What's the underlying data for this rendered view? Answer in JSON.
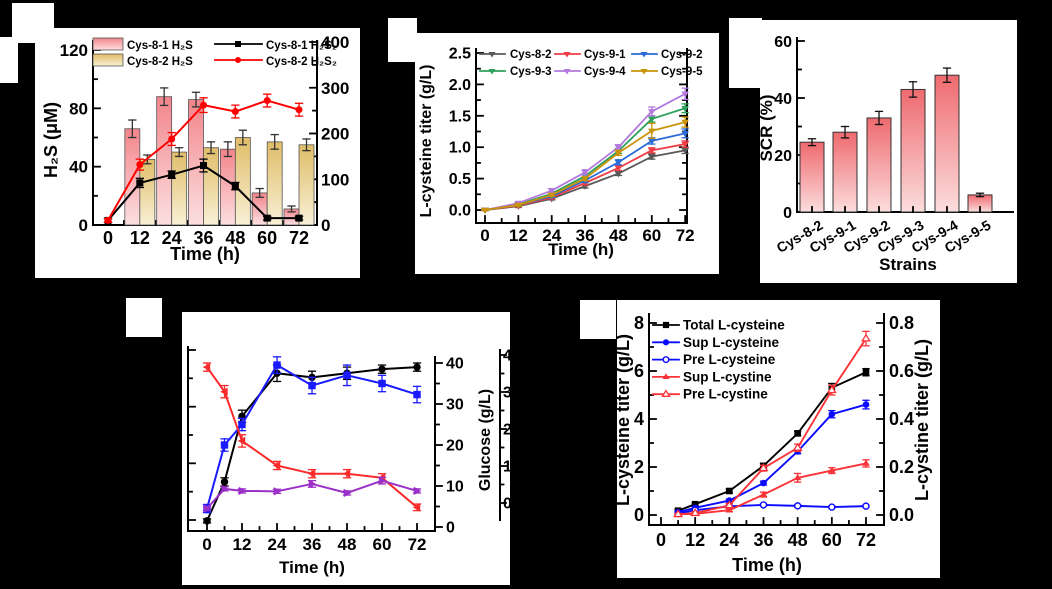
{
  "figure": {
    "background": "#000000",
    "panel_labels": {
      "a": "",
      "b": "",
      "c": "",
      "d": "",
      "e": ""
    }
  },
  "chart_data": [
    {
      "panel": "top-left",
      "type": "bar+line",
      "xlabel": "Time (h)",
      "ylabel_left": "H₂S (μM)",
      "x_tick_labels": [
        "0",
        "12",
        "24",
        "36",
        "48",
        "60",
        "72"
      ],
      "ylim_left": [
        0,
        120
      ],
      "yticks_left": [
        "0",
        "40",
        "80",
        "120"
      ],
      "ylim_right": [
        0,
        400
      ],
      "yticks_right": [
        "0",
        "100",
        "200",
        "300",
        "400"
      ],
      "bar_series": [
        {
          "name": "Cys-8-1 H₂S",
          "color_top": "#f2858b",
          "color_bottom": "#fcdfe0",
          "x": [
            12,
            24,
            36,
            48,
            60,
            72
          ],
          "values": [
            66,
            88,
            86,
            52,
            22,
            11
          ],
          "err": [
            6,
            6,
            5,
            5,
            3,
            2
          ]
        },
        {
          "name": "Cys-8-2 H₂S",
          "color_top": "#e0bd68",
          "color_bottom": "#f8f0d6",
          "x": [
            12,
            24,
            36,
            48,
            60,
            72
          ],
          "values": [
            45,
            50,
            53,
            60,
            57,
            55
          ],
          "err": [
            3,
            3,
            4,
            5,
            5,
            4
          ]
        }
      ],
      "line_series": [
        {
          "name": "Cys-8-1 H₂S₂",
          "color": "#000000",
          "marker": "square",
          "axis": "right",
          "x": [
            0,
            12,
            24,
            36,
            48,
            60,
            72
          ],
          "values": [
            10,
            92,
            110,
            130,
            85,
            15,
            15
          ],
          "err": [
            4,
            10,
            8,
            14,
            8,
            4,
            4
          ]
        },
        {
          "name": "Cys-8-2 H₂S₂",
          "color": "#fe0000",
          "marker": "circle",
          "axis": "right",
          "x": [
            0,
            12,
            24,
            36,
            48,
            60,
            72
          ],
          "values": [
            10,
            132,
            188,
            262,
            248,
            272,
            252
          ],
          "err": [
            4,
            12,
            14,
            16,
            14,
            14,
            14
          ]
        }
      ]
    },
    {
      "panel": "top-middle",
      "type": "line",
      "xlabel": "Time (h)",
      "ylabel": "L-cysteine titer (g/L)",
      "x": [
        0,
        12,
        24,
        36,
        48,
        60,
        72
      ],
      "x_tick_labels": [
        "0",
        "12",
        "24",
        "36",
        "48",
        "60",
        "72"
      ],
      "ylim": [
        0,
        2.5
      ],
      "yticks": [
        "0.0",
        "0.5",
        "1.0",
        "1.5",
        "2.0",
        "2.5"
      ],
      "series": [
        {
          "name": "Cys-8-2",
          "color": "#595959",
          "marker": "triangle-down",
          "values": [
            0,
            0.06,
            0.18,
            0.38,
            0.58,
            0.85,
            0.95
          ],
          "err": [
            0.01,
            0.02,
            0.02,
            0.03,
            0.03,
            0.04,
            0.05
          ]
        },
        {
          "name": "Cys-9-1",
          "color": "#ed3e45",
          "marker": "triangle-down",
          "values": [
            0,
            0.07,
            0.2,
            0.43,
            0.67,
            0.95,
            1.05
          ],
          "err": [
            0.01,
            0.02,
            0.02,
            0.03,
            0.04,
            0.04,
            0.05
          ]
        },
        {
          "name": "Cys-9-2",
          "color": "#2a6bd8",
          "marker": "triangle-down",
          "values": [
            0,
            0.08,
            0.22,
            0.47,
            0.76,
            1.1,
            1.22
          ],
          "err": [
            0.01,
            0.02,
            0.02,
            0.03,
            0.04,
            0.05,
            0.07
          ]
        },
        {
          "name": "Cys-9-3",
          "color": "#2ca05a",
          "marker": "triangle-down",
          "values": [
            0,
            0.09,
            0.26,
            0.54,
            0.94,
            1.45,
            1.62
          ],
          "err": [
            0.01,
            0.02,
            0.03,
            0.03,
            0.04,
            0.05,
            0.07
          ]
        },
        {
          "name": "Cys-9-4",
          "color": "#b279de",
          "marker": "triangle-down",
          "values": [
            0,
            0.11,
            0.31,
            0.6,
            1.0,
            1.57,
            1.85
          ],
          "err": [
            0.01,
            0.02,
            0.03,
            0.04,
            0.04,
            0.07,
            0.09
          ]
        },
        {
          "name": "Cys-9-5",
          "color": "#c9930a",
          "marker": "triangle-down",
          "values": [
            0,
            0.08,
            0.24,
            0.5,
            0.91,
            1.26,
            1.4
          ],
          "err": [
            0.01,
            0.02,
            0.02,
            0.03,
            0.04,
            0.12,
            0.08
          ]
        }
      ]
    },
    {
      "panel": "top-right",
      "type": "bar",
      "xlabel": "Strains",
      "ylabel": "SCR (%)",
      "categories": [
        "Cys-8-2",
        "Cys-9-1",
        "Cys-9-2",
        "Cys-9-3",
        "Cys-9-4",
        "Cys-9-5"
      ],
      "values": [
        24.5,
        28,
        33,
        43,
        48,
        6
      ],
      "err": [
        1.2,
        2,
        2.3,
        2.7,
        2.5,
        0.6
      ],
      "ylim": [
        0,
        60
      ],
      "yticks": [
        "0",
        "20",
        "40",
        "60"
      ],
      "bar_color_top": "#ee6a6f",
      "bar_color_bottom": "#fcdddd"
    },
    {
      "panel": "bottom-left",
      "type": "line",
      "xlabel": "Time (h)",
      "ylabel_right": "Glucose (g/L)",
      "x": [
        0,
        6,
        12,
        24,
        36,
        48,
        60,
        72
      ],
      "x_tick_labels": [
        "0",
        "12",
        "24",
        "36",
        "48",
        "60",
        "72"
      ],
      "ylim_right": [
        0,
        40
      ],
      "yticks_right": [
        "0",
        "10",
        "20",
        "30",
        "40"
      ],
      "left_axis_labels_visible": false,
      "right_axis2_partial_labels": [
        "4",
        "3",
        "2",
        "1",
        "0"
      ],
      "series": [
        {
          "name": "black-circle-series",
          "color": "#000000",
          "marker": "circle",
          "values": [
            1.5,
            11,
            27,
            37.5,
            36.5,
            37.5,
            38.5,
            39
          ],
          "err": [
            0.5,
            1,
            1.5,
            2,
            1.5,
            1.5,
            1,
            1
          ]
        },
        {
          "name": "blue-square-series",
          "color": "#1a1aff",
          "marker": "square",
          "values": [
            4.5,
            20,
            25,
            39.5,
            34.5,
            37,
            35,
            32.3
          ],
          "err": [
            1,
            1.5,
            1.5,
            2,
            2,
            2.5,
            2,
            2
          ]
        },
        {
          "name": "glucose-red-left-triangle-series",
          "color": "#fb2b2b",
          "marker": "triangle-left",
          "values": [
            39,
            33,
            21,
            15,
            13,
            13,
            12,
            4.8
          ],
          "err": [
            1,
            1.5,
            1.5,
            1,
            1,
            1,
            1,
            0.8
          ]
        },
        {
          "name": "purple-right-triangle-series",
          "color": "#9b30c8",
          "marker": "triangle-right",
          "values": [
            4.5,
            9.3,
            8.8,
            8.7,
            10.5,
            8.3,
            11.3,
            8.8
          ],
          "err": [
            0.5,
            0.5,
            0.5,
            0.5,
            0.8,
            0.5,
            0.8,
            0.5
          ]
        }
      ]
    },
    {
      "panel": "bottom-right",
      "type": "line",
      "xlabel": "Time (h)",
      "ylabel_left": "L-cysteine titer (g/L)",
      "ylabel_right": "L-cystine titer (g/L)",
      "x": [
        6,
        12,
        24,
        36,
        48,
        60,
        72
      ],
      "x_tick_labels": [
        "0",
        "12",
        "24",
        "36",
        "48",
        "60",
        "72"
      ],
      "ylim_left": [
        0,
        8
      ],
      "yticks_left": [
        "0",
        "2",
        "4",
        "6",
        "8"
      ],
      "ylim_right": [
        0,
        0.8
      ],
      "yticks_right": [
        "0.0",
        "0.2",
        "0.4",
        "0.6",
        "0.8"
      ],
      "series": [
        {
          "name": "Total L-cysteine",
          "color": "#000000",
          "marker": "square",
          "axis": "left",
          "values": [
            0.18,
            0.45,
            1.0,
            2.05,
            3.4,
            5.3,
            5.95
          ],
          "err": [
            0.05,
            0.06,
            0.08,
            0.1,
            0.1,
            0.18,
            0.15
          ]
        },
        {
          "name": "Sup L-cysteine",
          "color": "#0b0bff",
          "marker": "circle",
          "axis": "left",
          "values": [
            0.12,
            0.3,
            0.6,
            1.33,
            2.65,
            4.2,
            4.6
          ],
          "err": [
            0.04,
            0.05,
            0.06,
            0.08,
            0.1,
            0.15,
            0.18
          ]
        },
        {
          "name": "Pre L-cysteine",
          "color": "#0b0bff",
          "marker": "circle-open",
          "axis": "left",
          "values": [
            0.06,
            0.2,
            0.36,
            0.42,
            0.38,
            0.33,
            0.37
          ],
          "err": [
            0.02,
            0.03,
            0.04,
            0.04,
            0.04,
            0.04,
            0.04
          ]
        },
        {
          "name": "Sup L-cystine",
          "color": "#fb3338",
          "marker": "triangle-up",
          "axis": "right",
          "values": [
            0.003,
            0.005,
            0.02,
            0.085,
            0.155,
            0.185,
            0.215
          ],
          "err": [
            0.003,
            0.004,
            0.006,
            0.01,
            0.018,
            0.012,
            0.015
          ]
        },
        {
          "name": "Pre L-cystine",
          "color": "#fb3338",
          "marker": "triangle-up-open",
          "axis": "right",
          "values": [
            0.003,
            0.008,
            0.04,
            0.195,
            0.28,
            0.52,
            0.735
          ],
          "err": [
            0.003,
            0.005,
            0.008,
            0.012,
            0.015,
            0.02,
            0.03
          ]
        }
      ]
    }
  ]
}
